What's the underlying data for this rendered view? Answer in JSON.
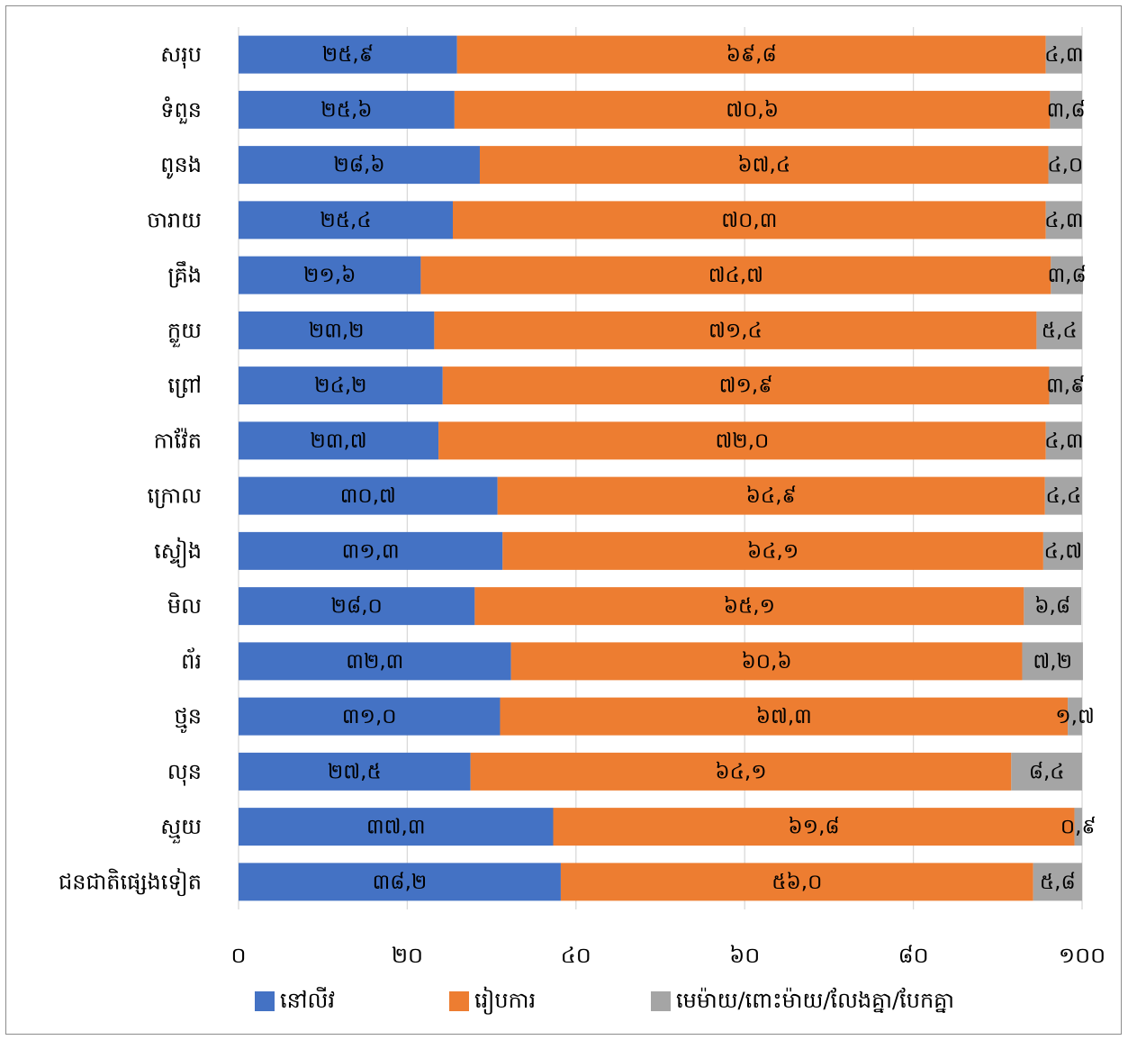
{
  "chart_data": {
    "type": "bar",
    "orientation": "horizontal",
    "stacked": true,
    "categories": [
      "សរុប",
      "ទំពួន",
      "ពូនង",
      "ចារាយ",
      "គ្រឹង",
      "ក្លួយ",
      "ព្រៅ",
      "កាវ៉ែត",
      "ក្រោល",
      "ស្ទៀង",
      "មិល",
      "ព័រ",
      "ថ្មូន",
      "លុន",
      "ស្មួយ",
      "ជនជាតិផ្សេងទៀត"
    ],
    "series": [
      {
        "name": "នៅលីវ",
        "color": "#4472c4",
        "values": [
          25.9,
          25.6,
          28.6,
          25.4,
          21.6,
          23.2,
          24.2,
          23.7,
          30.7,
          31.3,
          28.0,
          32.3,
          31.0,
          27.5,
          37.3,
          38.2
        ],
        "labels": [
          "២៥,៩",
          "២៥,៦",
          "២៨,៦",
          "២៥,៤",
          "២១,៦",
          "២៣,២",
          "២៤,២",
          "២៣,៧",
          "៣០,៧",
          "៣១,៣",
          "២៨,០",
          "៣២,៣",
          "៣១,០",
          "២៧,៥",
          "៣៧,៣",
          "៣៨,២"
        ]
      },
      {
        "name": "រៀបការ",
        "color": "#ed7d31",
        "values": [
          69.8,
          70.6,
          67.4,
          70.3,
          74.7,
          71.4,
          71.9,
          72.0,
          64.9,
          64.1,
          65.1,
          60.6,
          67.3,
          64.1,
          61.8,
          56.0
        ],
        "labels": [
          "៦៩,៨",
          "៧០,៦",
          "៦៧,៤",
          "៧០,៣",
          "៧៤,៧",
          "៧១,៤",
          "៧១,៩",
          "៧២,០",
          "៦៤,៩",
          "៦៤,១",
          "៦៥,១",
          "៦០,៦",
          "៦៧,៣",
          "៦៤,១",
          "៦១,៨",
          "៥៦,០"
        ]
      },
      {
        "name": "មេម៉ាយ/ពោះម៉ាយ/លែងគ្នា/បែកគ្នា",
        "color": "#a5a5a5",
        "values": [
          4.3,
          3.8,
          4.0,
          4.3,
          3.8,
          5.4,
          3.9,
          4.3,
          4.4,
          4.7,
          6.8,
          7.2,
          1.7,
          8.4,
          0.9,
          5.8
        ],
        "labels": [
          "៤,៣",
          "៣,៨",
          "៤,០",
          "៤,៣",
          "៣,៨",
          "៥,៤",
          "៣,៩",
          "៤,៣",
          "៤,៤",
          "៤,៧",
          "៦,៨",
          "៧,២",
          "១,៧",
          "៨,៤",
          "០,៩",
          "៥,៨"
        ]
      }
    ],
    "xlim": [
      0,
      100
    ],
    "x_ticks": [
      0,
      20,
      40,
      60,
      80,
      100
    ],
    "x_tick_labels": [
      "០",
      "២០",
      "៤០",
      "៦០",
      "៨០",
      "១០០"
    ],
    "gridlines": true,
    "legend_position": "bottom",
    "title": "",
    "xlabel": "",
    "ylabel": ""
  }
}
